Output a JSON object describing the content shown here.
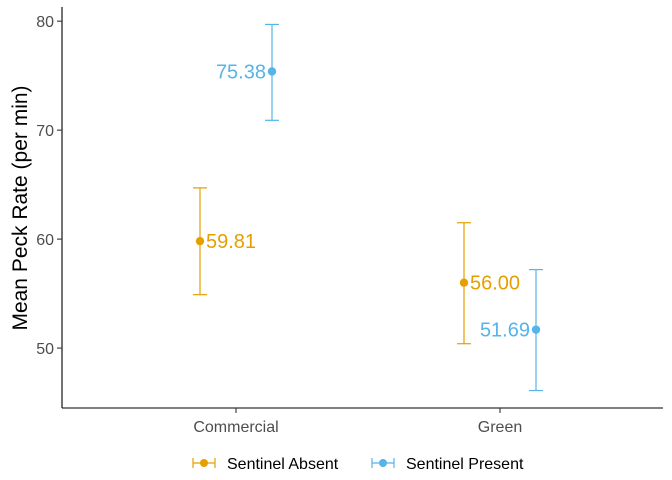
{
  "chart_data": {
    "type": "scatter",
    "title": "",
    "xlabel": "",
    "ylabel": "Mean Peck Rate (per min)",
    "categories": [
      "Commercial",
      "Green"
    ],
    "ylim": [
      44.5,
      81.3
    ],
    "yticks": [
      50,
      60,
      70,
      80
    ],
    "ytick_labels": [
      "50",
      "60",
      "70",
      "80"
    ],
    "grid": false,
    "legend_position": "bottom",
    "series": [
      {
        "name": "Sentinel Absent",
        "color": "#E69F00",
        "values": [
          59.81,
          56.0
        ],
        "error_low": [
          54.9,
          50.4
        ],
        "error_high": [
          64.7,
          61.5
        ],
        "labels": [
          "59.81",
          "56.00"
        ]
      },
      {
        "name": "Sentinel Present",
        "color": "#56B4E9",
        "values": [
          75.38,
          51.69
        ],
        "error_low": [
          70.9,
          46.1
        ],
        "error_high": [
          79.7,
          57.2
        ],
        "labels": [
          "75.38",
          "51.69"
        ]
      }
    ]
  }
}
